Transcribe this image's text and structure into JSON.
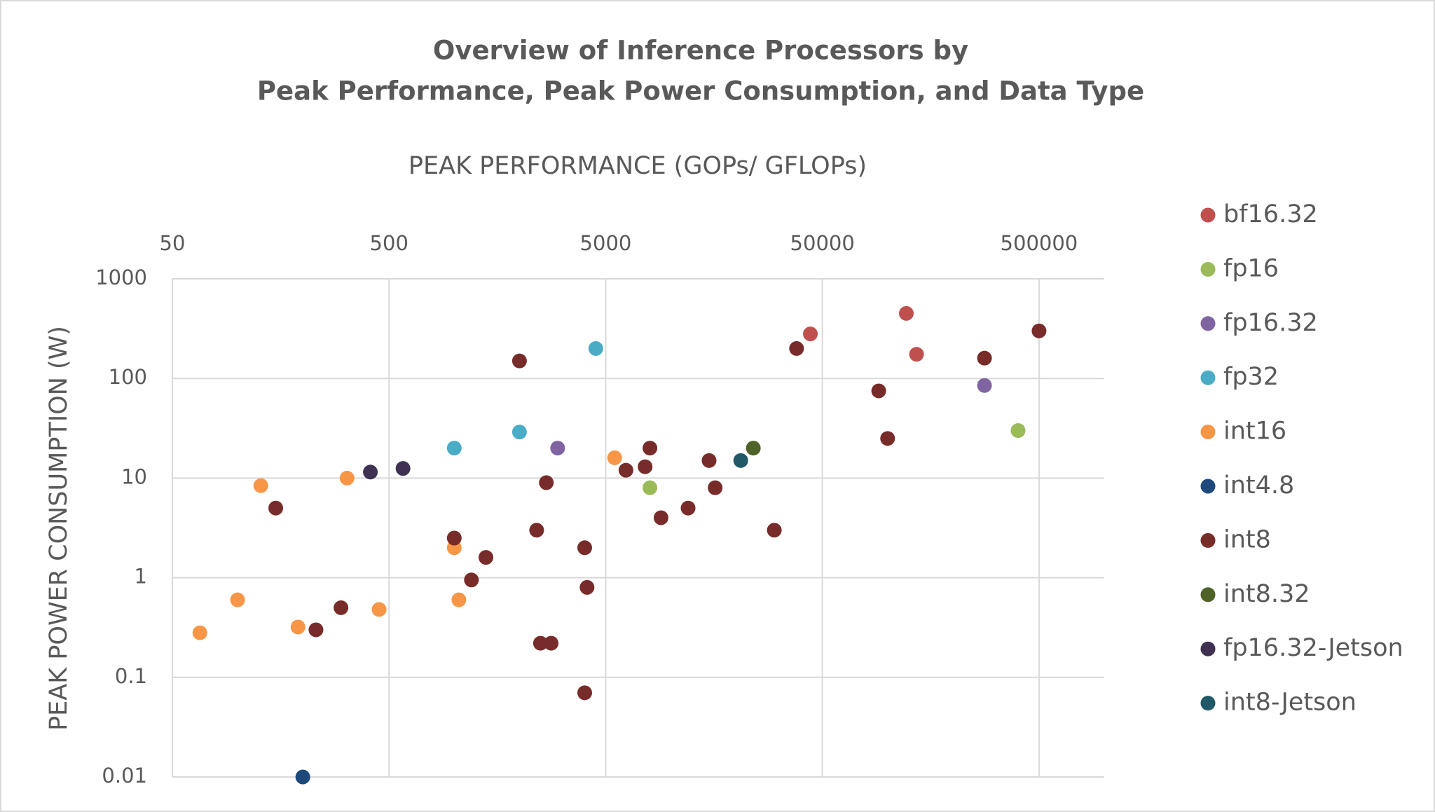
{
  "chart_data": {
    "type": "scatter",
    "title": [
      "Overview of Inference Processors by",
      "Peak Performance, Peak Power Consumption, and Data Type"
    ],
    "x_label": "PEAK PERFORMANCE (GOPs/ GFLOPs)",
    "y_label": "PEAK POWER CONSUMPTION (W)",
    "xscale": "log",
    "yscale": "log",
    "xlim": [
      50,
      1000000
    ],
    "ylim": [
      0.01,
      1000
    ],
    "xticks": [
      50,
      500,
      5000,
      50000,
      500000
    ],
    "yticks": [
      0.01,
      0.1,
      1,
      10,
      100,
      1000
    ],
    "grid": true,
    "legend": "right",
    "series": [
      {
        "name": "bf16.32",
        "color": "#c0504d",
        "x": [
          44000,
          122000,
          136000
        ],
        "values": [
          280,
          450,
          175
        ]
      },
      {
        "name": "fp16",
        "color": "#9bbb59",
        "x": [
          8000,
          400000
        ],
        "values": [
          8,
          30
        ]
      },
      {
        "name": "fp16.32",
        "color": "#8064a2",
        "x": [
          3000,
          280000
        ],
        "values": [
          20,
          85
        ]
      },
      {
        "name": "fp32",
        "color": "#4bacc6",
        "x": [
          1000,
          2000,
          4500
        ],
        "values": [
          20,
          29,
          200
        ]
      },
      {
        "name": "int16",
        "color": "#f79646",
        "x": [
          67,
          100,
          128,
          190,
          320,
          450,
          1000,
          1050,
          5500
        ],
        "values": [
          0.28,
          0.6,
          8.4,
          0.32,
          10,
          0.48,
          2,
          0.6,
          16
        ]
      },
      {
        "name": "int4.8",
        "color": "#1f497d",
        "x": [
          200
        ],
        "values": [
          0.01
        ]
      },
      {
        "name": "int8",
        "color": "#772c2a",
        "x": [
          150,
          230,
          300,
          1000,
          1200,
          1400,
          2000,
          2400,
          2500,
          2660,
          2800,
          4000,
          4100,
          4000,
          6200,
          7600,
          8000,
          9000,
          12000,
          15000,
          16000,
          30000,
          38000,
          91000,
          100000,
          280000,
          500000
        ],
        "values": [
          5,
          0.3,
          0.5,
          2.5,
          0.95,
          1.6,
          150,
          3,
          0.22,
          9,
          0.22,
          2,
          0.8,
          0.07,
          12,
          13,
          20,
          4,
          5,
          15,
          8,
          3,
          200,
          75,
          25,
          160,
          300
        ]
      },
      {
        "name": "int8.32",
        "color": "#4f6228",
        "x": [
          24000
        ],
        "values": [
          20
        ]
      },
      {
        "name": "fp16.32-Jetson",
        "color": "#3f3151",
        "x": [
          410,
          580
        ],
        "values": [
          11.5,
          12.5
        ]
      },
      {
        "name": "int8-Jetson",
        "color": "#215968",
        "x": [
          21000
        ],
        "values": [
          15
        ]
      }
    ]
  }
}
